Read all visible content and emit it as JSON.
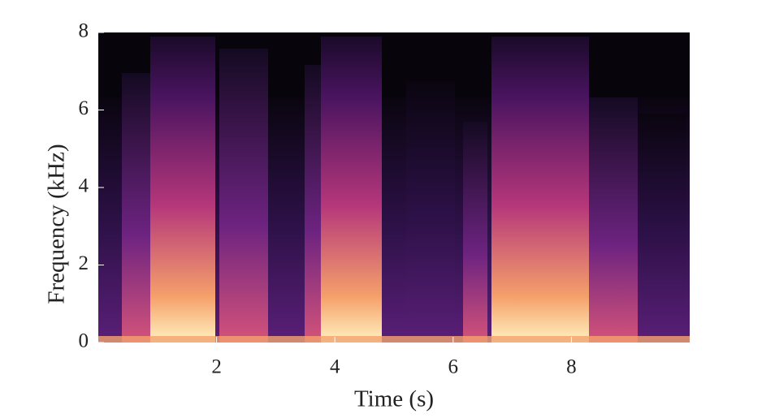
{
  "chart_data": {
    "type": "spectrogram",
    "xlabel": "Time (s)",
    "ylabel": "Frequency (kHz)",
    "xlim": [
      0,
      10
    ],
    "xticks": [
      2,
      4,
      6,
      8
    ],
    "ylim": [
      0,
      8
    ],
    "yticks": [
      0,
      2,
      4,
      6,
      8
    ]
  }
}
